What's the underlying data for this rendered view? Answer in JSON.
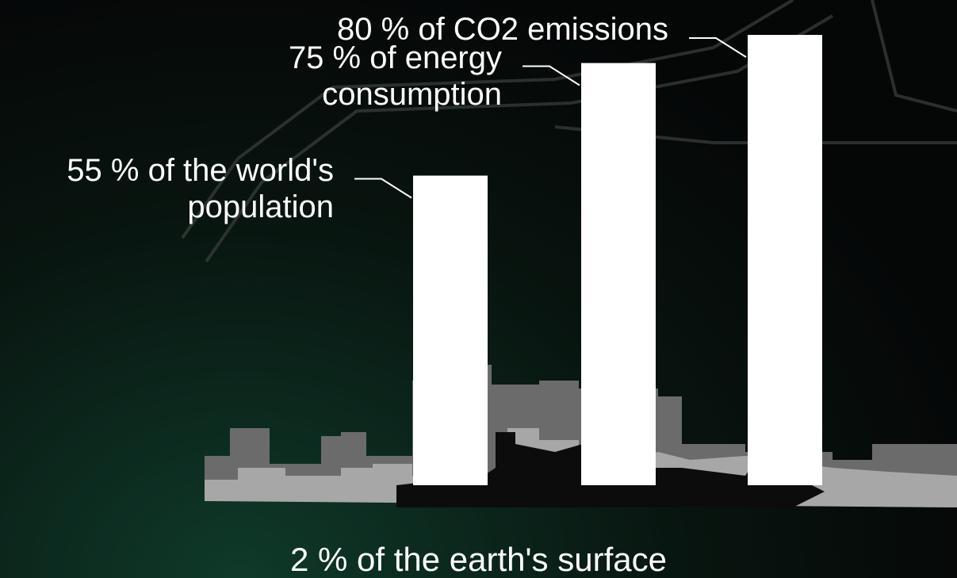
{
  "chart_data": {
    "type": "bar",
    "values": [
      55,
      75,
      80
    ],
    "value_labels": [
      "55 % of the world's population",
      "75 % of energy consumption",
      "80 % of CO2 emissions"
    ],
    "color": "#ffffff",
    "annotation": "2 % of the earth's surface"
  }
}
